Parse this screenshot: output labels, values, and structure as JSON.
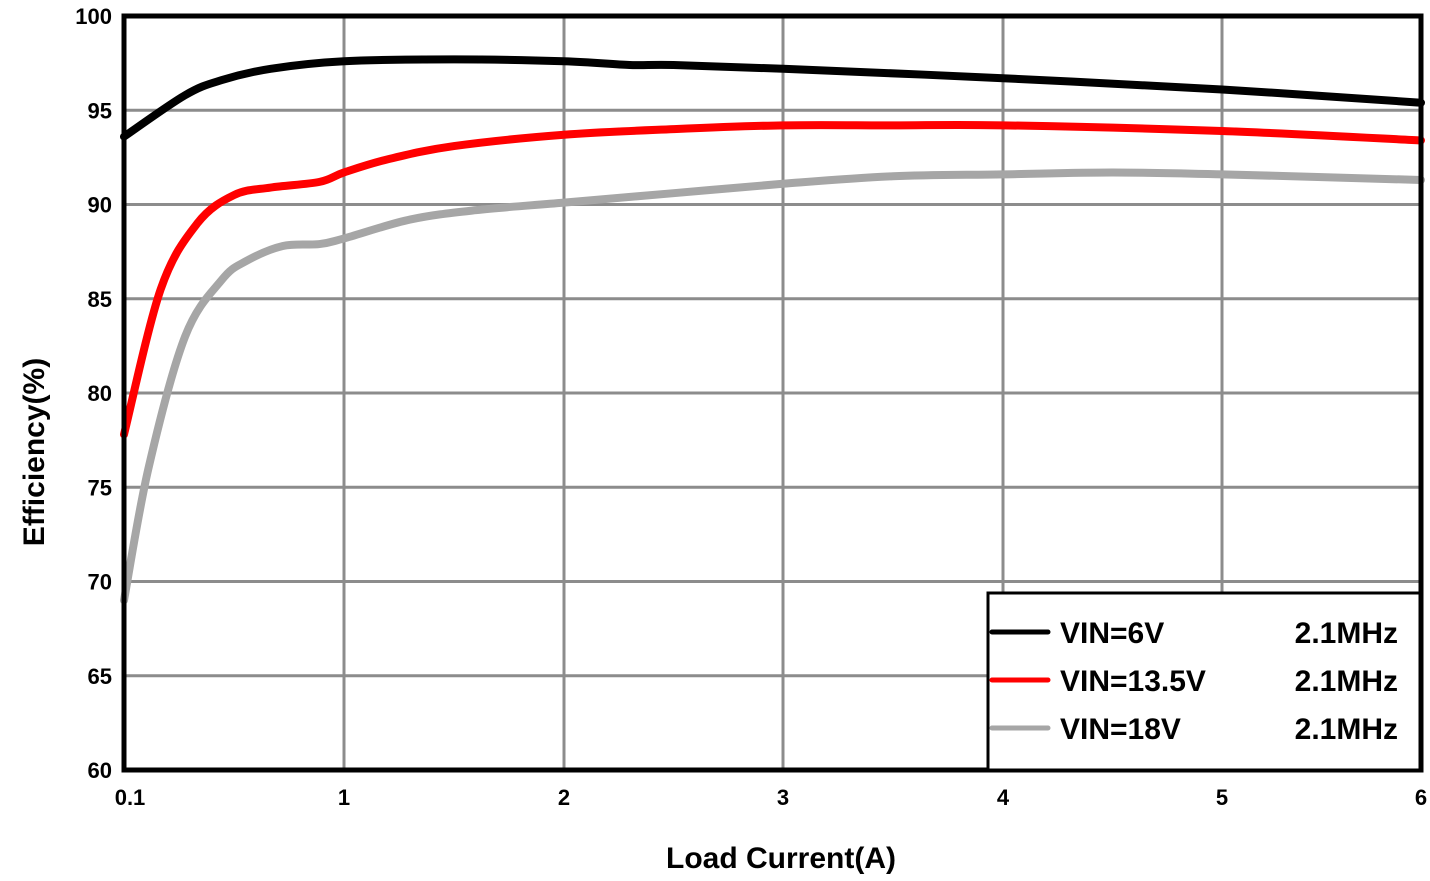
{
  "chart_data": {
    "type": "line",
    "title": "",
    "xlabel": "Load Current(A)",
    "ylabel": "Efficiency(%)",
    "xlim": [
      0.1,
      6
    ],
    "ylim": [
      60,
      100
    ],
    "x_ticks": [
      "0.1",
      "1",
      "2",
      "3",
      "4",
      "5",
      "6"
    ],
    "y_ticks": [
      "60",
      "65",
      "70",
      "75",
      "80",
      "85",
      "90",
      "95",
      "100"
    ],
    "grid": true,
    "legend_position": "lower right",
    "series": [
      {
        "name": "VIN=6V 2.1MHz",
        "label_vin": "VIN=6V",
        "label_freq": "2.1MHz",
        "color": "#000000",
        "x": [
          0.1,
          0.35,
          0.5,
          0.7,
          1.0,
          1.5,
          2.0,
          2.3,
          2.5,
          3.0,
          4.0,
          5.0,
          6.0
        ],
        "y": [
          93.6,
          95.8,
          96.6,
          97.2,
          97.6,
          97.7,
          97.6,
          97.4,
          97.4,
          97.2,
          96.7,
          96.1,
          95.4
        ]
      },
      {
        "name": "VIN=13.5V 2.1MHz",
        "label_vin": "VIN=13.5V",
        "label_freq": "2.1MHz",
        "color": "#ff0000",
        "x": [
          0.1,
          0.25,
          0.4,
          0.55,
          0.7,
          0.9,
          1.0,
          1.2,
          1.5,
          2.0,
          2.5,
          3.0,
          3.5,
          4.0,
          5.0,
          6.0
        ],
        "y": [
          77.8,
          85.5,
          89.0,
          90.5,
          90.9,
          91.2,
          91.7,
          92.4,
          93.1,
          93.7,
          94.0,
          94.2,
          94.2,
          94.2,
          93.9,
          93.4
        ]
      },
      {
        "name": "VIN=18V 2.1MHz",
        "label_vin": "VIN=18V",
        "label_freq": "2.1MHz",
        "color": "#a6a6a6",
        "x": [
          0.1,
          0.2,
          0.35,
          0.5,
          0.6,
          0.75,
          0.9,
          1.0,
          1.3,
          1.6,
          2.0,
          2.5,
          3.0,
          3.5,
          4.0,
          4.5,
          5.0,
          6.0
        ],
        "y": [
          69.0,
          76.0,
          83.0,
          86.0,
          87.0,
          87.8,
          87.9,
          88.2,
          89.2,
          89.7,
          90.1,
          90.6,
          91.1,
          91.5,
          91.6,
          91.7,
          91.6,
          91.3
        ]
      }
    ]
  }
}
